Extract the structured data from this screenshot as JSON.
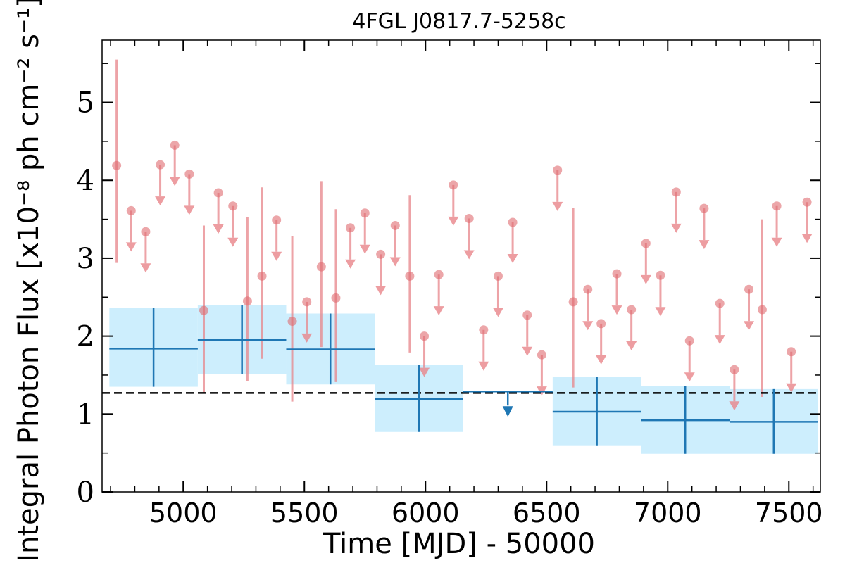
{
  "chart_data": {
    "type": "scatter",
    "title": "4FGL J0817.7-5258c",
    "xlabel": "Time [MJD] - 50000",
    "ylabel": "Integral Photon Flux [x10⁻⁸ ph cm⁻² s⁻¹]",
    "xlim": [
      4665,
      7630
    ],
    "ylim": [
      0,
      5.8
    ],
    "x_ticks": [
      5000,
      5500,
      6000,
      6500,
      7000,
      7500
    ],
    "y_ticks": [
      0,
      1,
      2,
      3,
      4,
      5
    ],
    "grid": false,
    "reference_line": {
      "y": 1.27,
      "style": "dashed",
      "color": "#000000"
    },
    "series": [
      {
        "style": "wide bins with error boxes",
        "color": "#1f77b4",
        "box_color": "#cdeefd",
        "points": [
          {
            "x_start": 4695,
            "x_end": 5060,
            "y": 1.84,
            "y_low": 1.35,
            "y_high": 2.36
          },
          {
            "x_start": 5060,
            "x_end": 5425,
            "y": 1.95,
            "y_low": 1.51,
            "y_high": 2.4
          },
          {
            "x_start": 5425,
            "x_end": 5790,
            "y": 1.83,
            "y_low": 1.38,
            "y_high": 2.29
          },
          {
            "x_start": 5790,
            "x_end": 6155,
            "y": 1.19,
            "y_low": 0.77,
            "y_high": 1.63
          },
          {
            "x_start": 6890,
            "x_end": 7255,
            "y": 0.92,
            "y_low": 0.49,
            "y_high": 1.36
          },
          {
            "x_start": 7255,
            "x_end": 7620,
            "y": 0.9,
            "y_low": 0.49,
            "y_high": 1.32
          },
          {
            "x_start": 6525,
            "x_end": 6890,
            "y": 1.03,
            "y_low": 0.59,
            "y_high": 1.48
          }
        ],
        "upper_limits": [
          {
            "x_start": 6155,
            "x_end": 6525,
            "y": 1.29
          }
        ]
      },
      {
        "style": "short bins",
        "color": "#e8858a",
        "points": [
          {
            "x": 4725,
            "y": 4.19,
            "y_low": 2.94,
            "y_high": 5.55
          },
          {
            "x": 5085,
            "y": 2.33,
            "y_low": 1.28,
            "y_high": 3.42
          },
          {
            "x": 5265,
            "y": 2.45,
            "y_low": 1.42,
            "y_high": 3.53
          },
          {
            "x": 5325,
            "y": 2.77,
            "y_low": 1.71,
            "y_high": 3.91
          },
          {
            "x": 5450,
            "y": 2.19,
            "y_low": 1.16,
            "y_high": 3.28
          },
          {
            "x": 5570,
            "y": 2.89,
            "y_low": 1.86,
            "y_high": 3.99
          },
          {
            "x": 5630,
            "y": 2.49,
            "y_low": 1.41,
            "y_high": 3.63
          },
          {
            "x": 5935,
            "y": 2.77,
            "y_low": 1.79,
            "y_high": 3.81
          },
          {
            "x": 6610,
            "y": 2.44,
            "y_low": 1.34,
            "y_high": 3.65
          },
          {
            "x": 7390,
            "y": 2.34,
            "y_low": 1.22,
            "y_high": 3.5
          }
        ],
        "upper_limits": [
          {
            "x": 4785,
            "y": 3.61
          },
          {
            "x": 4845,
            "y": 3.34
          },
          {
            "x": 4905,
            "y": 4.2
          },
          {
            "x": 4965,
            "y": 4.45
          },
          {
            "x": 5025,
            "y": 4.08
          },
          {
            "x": 5145,
            "y": 3.84
          },
          {
            "x": 5205,
            "y": 3.67
          },
          {
            "x": 5385,
            "y": 3.49
          },
          {
            "x": 5510,
            "y": 2.44
          },
          {
            "x": 5690,
            "y": 3.39
          },
          {
            "x": 5750,
            "y": 3.58
          },
          {
            "x": 5815,
            "y": 3.05
          },
          {
            "x": 5875,
            "y": 3.42
          },
          {
            "x": 5995,
            "y": 2.0
          },
          {
            "x": 6055,
            "y": 2.79
          },
          {
            "x": 6115,
            "y": 3.94
          },
          {
            "x": 6180,
            "y": 3.51
          },
          {
            "x": 6240,
            "y": 2.08
          },
          {
            "x": 6300,
            "y": 2.77
          },
          {
            "x": 6360,
            "y": 3.46
          },
          {
            "x": 6420,
            "y": 2.27
          },
          {
            "x": 6480,
            "y": 1.76
          },
          {
            "x": 6545,
            "y": 4.13
          },
          {
            "x": 6670,
            "y": 2.6
          },
          {
            "x": 6725,
            "y": 2.16
          },
          {
            "x": 6790,
            "y": 2.8
          },
          {
            "x": 6850,
            "y": 2.34
          },
          {
            "x": 6910,
            "y": 3.19
          },
          {
            "x": 6970,
            "y": 2.78
          },
          {
            "x": 7035,
            "y": 3.85
          },
          {
            "x": 7090,
            "y": 1.94
          },
          {
            "x": 7150,
            "y": 3.64
          },
          {
            "x": 7215,
            "y": 2.42
          },
          {
            "x": 7275,
            "y": 1.57
          },
          {
            "x": 7335,
            "y": 2.6
          },
          {
            "x": 7450,
            "y": 3.67
          },
          {
            "x": 7510,
            "y": 1.8
          },
          {
            "x": 7575,
            "y": 3.72
          }
        ]
      }
    ]
  }
}
